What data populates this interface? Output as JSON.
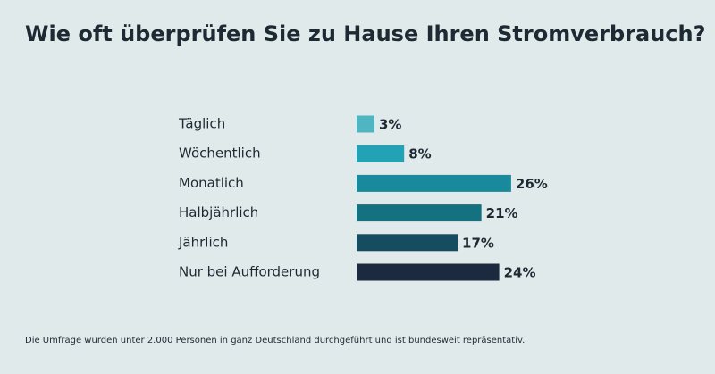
{
  "chart_data": {
    "type": "bar",
    "orientation": "horizontal",
    "title": "Wie oft überprüfen Sie zu Hause Ihren Stromverbrauch?",
    "categories": [
      "Täglich",
      "Wöchentlich",
      "Monatlich",
      "Halbjährlich",
      "Jährlich",
      "Nur bei Aufforderung"
    ],
    "values": [
      3,
      8,
      26,
      21,
      17,
      24
    ],
    "value_labels": [
      "3%",
      "8%",
      "26%",
      "21%",
      "17%",
      "24%"
    ],
    "colors": [
      "#4fb5c3",
      "#22a2b4",
      "#188a9b",
      "#14717f",
      "#164c5f",
      "#1b2a3f"
    ],
    "note": "Die Umfrage wurden unter 2.000 Personen in ganz Deutschland durchgeführt und ist bundesweit repräsentativ."
  }
}
